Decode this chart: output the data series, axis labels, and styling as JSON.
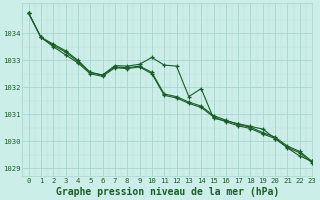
{
  "title": "Graphe pression niveau de la mer (hPa)",
  "bg_color": "#cceee8",
  "plot_bg_color": "#cceee8",
  "grid_color_major": "#aad4cc",
  "grid_color_minor": "#bbddd8",
  "line_color": "#1a5e28",
  "marker_color": "#1a5e28",
  "tick_color": "#1a5e28",
  "xlim": [
    -0.5,
    23
  ],
  "ylim": [
    1028.7,
    1035.1
  ],
  "yticks": [
    1029,
    1030,
    1031,
    1032,
    1033,
    1034
  ],
  "xticks": [
    0,
    1,
    2,
    3,
    4,
    5,
    6,
    7,
    8,
    9,
    10,
    11,
    12,
    13,
    14,
    15,
    16,
    17,
    18,
    19,
    20,
    21,
    22,
    23
  ],
  "series1": [
    1034.75,
    1033.85,
    1033.6,
    1033.35,
    1033.0,
    1032.55,
    1032.45,
    1032.8,
    1032.78,
    1032.85,
    1033.1,
    1032.82,
    1032.78,
    1031.65,
    1031.95,
    1030.85,
    1030.75,
    1030.65,
    1030.55,
    1030.45,
    1030.1,
    1029.75,
    1029.45,
    1029.25
  ],
  "series2": [
    1034.75,
    1033.85,
    1033.55,
    1033.3,
    1032.95,
    1032.55,
    1032.45,
    1032.75,
    1032.72,
    1032.78,
    1032.55,
    1031.75,
    1031.65,
    1031.45,
    1031.3,
    1030.95,
    1030.78,
    1030.62,
    1030.52,
    1030.32,
    1030.15,
    1029.82,
    1029.62,
    1029.25
  ],
  "series3": [
    1034.75,
    1033.85,
    1033.5,
    1033.2,
    1032.9,
    1032.5,
    1032.4,
    1032.72,
    1032.69,
    1032.75,
    1032.5,
    1031.7,
    1031.6,
    1031.4,
    1031.25,
    1030.9,
    1030.72,
    1030.57,
    1030.47,
    1030.27,
    1030.1,
    1029.77,
    1029.57,
    1029.2
  ],
  "title_fontsize": 7.0,
  "tick_fontsize": 5.2
}
